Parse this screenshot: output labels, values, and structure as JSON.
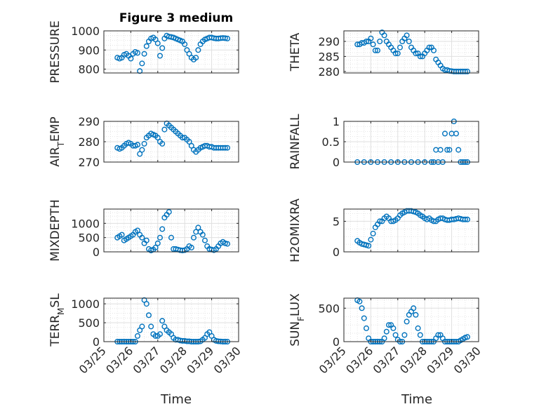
{
  "figure": {
    "title": "Figure 3 medium",
    "x_axis_label": "Time",
    "date_tick_labels": [
      "03/25",
      "03/26",
      "03/27",
      "03/28",
      "03/29",
      "03/30"
    ]
  },
  "colors": {
    "marker": "#0072BD",
    "axis": "#262626",
    "grid": "#DFDFDF"
  },
  "chart_data": [
    {
      "type": "scatter",
      "ylabel": "PRESSURE",
      "ylim": [
        780,
        1000
      ],
      "yticks": [
        800,
        900,
        1000
      ],
      "xlim": [
        "03/25",
        "03/30"
      ],
      "x": [
        "03/25 12:00",
        "03/25 14:00",
        "03/25 16:00",
        "03/25 18:00",
        "03/25 20:00",
        "03/25 22:00",
        "03/26 00:00",
        "03/26 02:00",
        "03/26 04:00",
        "03/26 06:00",
        "03/26 08:00",
        "03/26 10:00",
        "03/26 12:00",
        "03/26 14:00",
        "03/26 16:00",
        "03/26 18:00",
        "03/26 20:00",
        "03/26 22:00",
        "03/27 00:00",
        "03/27 02:00",
        "03/27 04:00",
        "03/27 06:00",
        "03/27 08:00",
        "03/27 10:00",
        "03/27 12:00",
        "03/27 14:00",
        "03/27 16:00",
        "03/27 18:00",
        "03/27 20:00",
        "03/27 22:00",
        "03/28 00:00",
        "03/28 02:00",
        "03/28 04:00",
        "03/28 06:00",
        "03/28 08:00",
        "03/28 10:00",
        "03/28 12:00",
        "03/28 14:00",
        "03/28 16:00",
        "03/28 18:00",
        "03/28 20:00",
        "03/28 22:00",
        "03/29 00:00",
        "03/29 02:00",
        "03/29 04:00",
        "03/29 06:00",
        "03/29 08:00",
        "03/29 10:00",
        "03/29 12:00",
        "03/29 14:00"
      ],
      "y": [
        860,
        855,
        860,
        875,
        880,
        870,
        855,
        880,
        890,
        885,
        790,
        830,
        880,
        920,
        945,
        960,
        965,
        955,
        935,
        870,
        910,
        960,
        975,
        970,
        968,
        965,
        960,
        955,
        950,
        945,
        930,
        900,
        880,
        860,
        850,
        860,
        900,
        930,
        945,
        955,
        960,
        965,
        965,
        962,
        960,
        960,
        962,
        963,
        962,
        960
      ]
    },
    {
      "type": "scatter",
      "ylabel": "THETA",
      "ylim": [
        279.5,
        293.5
      ],
      "yticks": [
        280,
        285,
        290
      ],
      "xlim": [
        "03/25",
        "03/30"
      ],
      "x": [
        "03/25 12:00",
        "03/25 14:00",
        "03/25 16:00",
        "03/25 18:00",
        "03/25 20:00",
        "03/25 22:00",
        "03/26 00:00",
        "03/26 02:00",
        "03/26 04:00",
        "03/26 06:00",
        "03/26 08:00",
        "03/26 10:00",
        "03/26 12:00",
        "03/26 14:00",
        "03/26 16:00",
        "03/26 18:00",
        "03/26 20:00",
        "03/26 22:00",
        "03/27 00:00",
        "03/27 02:00",
        "03/27 04:00",
        "03/27 06:00",
        "03/27 08:00",
        "03/27 10:00",
        "03/27 12:00",
        "03/27 14:00",
        "03/27 16:00",
        "03/27 18:00",
        "03/27 20:00",
        "03/27 22:00",
        "03/28 00:00",
        "03/28 02:00",
        "03/28 04:00",
        "03/28 06:00",
        "03/28 08:00",
        "03/28 10:00",
        "03/28 12:00",
        "03/28 14:00",
        "03/28 16:00",
        "03/28 18:00",
        "03/28 20:00",
        "03/28 22:00",
        "03/29 00:00",
        "03/29 02:00",
        "03/29 04:00",
        "03/29 06:00",
        "03/29 08:00",
        "03/29 10:00",
        "03/29 12:00",
        "03/29 14:00"
      ],
      "y": [
        289,
        289,
        289.5,
        289.5,
        290,
        290,
        291,
        289,
        287,
        287,
        290,
        293,
        292,
        290,
        289,
        288,
        287,
        286,
        286,
        288,
        290,
        291,
        292,
        290,
        288,
        287,
        286,
        286,
        285,
        285,
        286,
        287,
        288,
        288,
        287,
        284,
        283,
        282,
        281,
        280.5,
        280.5,
        280.2,
        280.1,
        280,
        280,
        280,
        280,
        280,
        280,
        280
      ]
    },
    {
      "type": "scatter",
      "ylabel": "AIR_TEMP",
      "ylim": [
        270,
        290
      ],
      "yticks": [
        270,
        280,
        290
      ],
      "xlim": [
        "03/25",
        "03/30"
      ],
      "x": [
        "03/25 12:00",
        "03/25 14:00",
        "03/25 16:00",
        "03/25 18:00",
        "03/25 20:00",
        "03/25 22:00",
        "03/26 00:00",
        "03/26 02:00",
        "03/26 04:00",
        "03/26 06:00",
        "03/26 08:00",
        "03/26 10:00",
        "03/26 12:00",
        "03/26 14:00",
        "03/26 16:00",
        "03/26 18:00",
        "03/26 20:00",
        "03/26 22:00",
        "03/27 00:00",
        "03/27 02:00",
        "03/27 04:00",
        "03/27 06:00",
        "03/27 08:00",
        "03/27 10:00",
        "03/27 12:00",
        "03/27 14:00",
        "03/27 16:00",
        "03/27 18:00",
        "03/27 20:00",
        "03/27 22:00",
        "03/28 00:00",
        "03/28 02:00",
        "03/28 04:00",
        "03/28 06:00",
        "03/28 08:00",
        "03/28 10:00",
        "03/28 12:00",
        "03/28 14:00",
        "03/28 16:00",
        "03/28 18:00",
        "03/28 20:00",
        "03/28 22:00",
        "03/29 00:00",
        "03/29 02:00",
        "03/29 04:00",
        "03/29 06:00",
        "03/29 08:00",
        "03/29 10:00",
        "03/29 12:00",
        "03/29 14:00"
      ],
      "y": [
        277,
        276.5,
        277,
        278,
        279,
        279.5,
        279,
        278,
        278,
        278.5,
        274,
        276,
        279,
        282,
        283,
        284,
        283.5,
        283,
        282,
        280,
        279,
        286,
        289,
        288,
        287,
        286,
        285,
        284,
        283,
        282,
        282,
        281,
        280,
        278,
        276,
        275,
        276,
        277,
        277.5,
        278,
        278,
        277.5,
        277.5,
        277,
        277,
        277,
        277,
        277,
        277,
        277
      ]
    },
    {
      "type": "scatter",
      "ylabel": "RAINFALL",
      "ylim": [
        0,
        1
      ],
      "yticks": [
        0,
        0.5,
        1
      ],
      "xlim": [
        "03/25",
        "03/30"
      ],
      "x": [
        "03/25 12:00",
        "03/25 18:00",
        "03/26 00:00",
        "03/26 06:00",
        "03/26 12:00",
        "03/26 18:00",
        "03/27 00:00",
        "03/27 06:00",
        "03/27 12:00",
        "03/27 18:00",
        "03/28 00:00",
        "03/28 06:00",
        "03/28 08:00",
        "03/28 10:00",
        "03/28 12:00",
        "03/28 14:00",
        "03/28 16:00",
        "03/28 18:00",
        "03/28 20:00",
        "03/28 22:00",
        "03/29 00:00",
        "03/29 02:00",
        "03/29 04:00",
        "03/29 06:00",
        "03/29 08:00",
        "03/29 10:00",
        "03/29 12:00",
        "03/29 14:00"
      ],
      "y": [
        0,
        0,
        0,
        0,
        0,
        0,
        0,
        0,
        0,
        0,
        0,
        0,
        0,
        0.3,
        0,
        0.3,
        0,
        0.7,
        0.3,
        0.3,
        0.7,
        1,
        0.7,
        0.3,
        0,
        0,
        0,
        0
      ]
    },
    {
      "type": "scatter",
      "ylabel": "MIXDEPTH",
      "ylim": [
        0,
        1500
      ],
      "yticks": [
        0,
        500,
        1000
      ],
      "xlim": [
        "03/25",
        "03/30"
      ],
      "x": [
        "03/25 12:00",
        "03/25 14:00",
        "03/25 16:00",
        "03/25 18:00",
        "03/25 20:00",
        "03/25 22:00",
        "03/26 00:00",
        "03/26 02:00",
        "03/26 04:00",
        "03/26 06:00",
        "03/26 08:00",
        "03/26 10:00",
        "03/26 12:00",
        "03/26 14:00",
        "03/26 16:00",
        "03/26 18:00",
        "03/26 20:00",
        "03/26 22:00",
        "03/27 00:00",
        "03/27 02:00",
        "03/27 04:00",
        "03/27 06:00",
        "03/27 08:00",
        "03/27 10:00",
        "03/27 12:00",
        "03/27 14:00",
        "03/27 16:00",
        "03/27 18:00",
        "03/27 20:00",
        "03/27 22:00",
        "03/28 00:00",
        "03/28 02:00",
        "03/28 04:00",
        "03/28 06:00",
        "03/28 08:00",
        "03/28 10:00",
        "03/28 12:00",
        "03/28 14:00",
        "03/28 16:00",
        "03/28 18:00",
        "03/28 20:00",
        "03/28 22:00",
        "03/29 00:00",
        "03/29 02:00",
        "03/29 04:00",
        "03/29 06:00",
        "03/29 08:00",
        "03/29 10:00",
        "03/29 12:00",
        "03/29 14:00"
      ],
      "y": [
        500,
        550,
        600,
        400,
        450,
        500,
        550,
        600,
        700,
        750,
        600,
        500,
        300,
        400,
        100,
        50,
        80,
        150,
        300,
        500,
        800,
        1200,
        1300,
        1400,
        500,
        100,
        100,
        80,
        60,
        50,
        60,
        100,
        200,
        150,
        500,
        700,
        850,
        700,
        600,
        400,
        200,
        100,
        80,
        60,
        100,
        200,
        300,
        350,
        300,
        280
      ]
    },
    {
      "type": "scatter",
      "ylabel": "H2OMIXRA",
      "ylim": [
        0,
        7
      ],
      "yticks": [
        0,
        5
      ],
      "xlim": [
        "03/25",
        "03/30"
      ],
      "x": [
        "03/25 12:00",
        "03/25 14:00",
        "03/25 16:00",
        "03/25 18:00",
        "03/25 20:00",
        "03/25 22:00",
        "03/26 00:00",
        "03/26 02:00",
        "03/26 04:00",
        "03/26 06:00",
        "03/26 08:00",
        "03/26 10:00",
        "03/26 12:00",
        "03/26 14:00",
        "03/26 16:00",
        "03/26 18:00",
        "03/26 20:00",
        "03/26 22:00",
        "03/27 00:00",
        "03/27 02:00",
        "03/27 04:00",
        "03/27 06:00",
        "03/27 08:00",
        "03/27 10:00",
        "03/27 12:00",
        "03/27 14:00",
        "03/27 16:00",
        "03/27 18:00",
        "03/27 20:00",
        "03/27 22:00",
        "03/28 00:00",
        "03/28 02:00",
        "03/28 04:00",
        "03/28 06:00",
        "03/28 08:00",
        "03/28 10:00",
        "03/28 12:00",
        "03/28 14:00",
        "03/28 16:00",
        "03/28 18:00",
        "03/28 20:00",
        "03/28 22:00",
        "03/29 00:00",
        "03/29 02:00",
        "03/29 04:00",
        "03/29 06:00",
        "03/29 08:00",
        "03/29 10:00",
        "03/29 12:00",
        "03/29 14:00"
      ],
      "y": [
        1.8,
        1.5,
        1.3,
        1.2,
        1.1,
        1.0,
        2.0,
        3.0,
        4.0,
        4.5,
        5.0,
        5.0,
        5.5,
        5.8,
        5.5,
        5.0,
        5.0,
        5.2,
        5.5,
        6.0,
        6.3,
        6.5,
        6.7,
        6.7,
        6.7,
        6.6,
        6.5,
        6.3,
        6.0,
        5.8,
        5.5,
        5.3,
        5.5,
        5.2,
        5.0,
        5.0,
        5.3,
        5.5,
        5.5,
        5.3,
        5.2,
        5.2,
        5.3,
        5.3,
        5.4,
        5.5,
        5.4,
        5.3,
        5.3,
        5.3
      ]
    },
    {
      "type": "scatter",
      "ylabel": "TERR_MSL",
      "ylim": [
        0,
        1150
      ],
      "yticks": [
        0,
        500,
        1000
      ],
      "xlim": [
        "03/25",
        "03/30"
      ],
      "x": [
        "03/25 12:00",
        "03/25 14:00",
        "03/25 16:00",
        "03/25 18:00",
        "03/25 20:00",
        "03/25 22:00",
        "03/26 00:00",
        "03/26 02:00",
        "03/26 04:00",
        "03/26 06:00",
        "03/26 08:00",
        "03/26 10:00",
        "03/26 12:00",
        "03/26 14:00",
        "03/26 16:00",
        "03/26 18:00",
        "03/26 20:00",
        "03/26 22:00",
        "03/27 00:00",
        "03/27 02:00",
        "03/27 04:00",
        "03/27 06:00",
        "03/27 08:00",
        "03/27 10:00",
        "03/27 12:00",
        "03/27 14:00",
        "03/27 16:00",
        "03/27 18:00",
        "03/27 20:00",
        "03/27 22:00",
        "03/28 00:00",
        "03/28 02:00",
        "03/28 04:00",
        "03/28 06:00",
        "03/28 08:00",
        "03/28 10:00",
        "03/28 12:00",
        "03/28 14:00",
        "03/28 16:00",
        "03/28 18:00",
        "03/28 20:00",
        "03/28 22:00",
        "03/29 00:00",
        "03/29 02:00",
        "03/29 04:00",
        "03/29 06:00",
        "03/29 08:00",
        "03/29 10:00",
        "03/29 12:00",
        "03/29 14:00"
      ],
      "y": [
        0,
        0,
        0,
        0,
        0,
        0,
        0,
        0,
        0,
        150,
        300,
        400,
        1100,
        1000,
        700,
        400,
        200,
        150,
        150,
        200,
        550,
        400,
        300,
        250,
        200,
        100,
        50,
        50,
        30,
        20,
        20,
        10,
        10,
        0,
        0,
        0,
        0,
        10,
        50,
        100,
        200,
        250,
        150,
        50,
        20,
        10,
        5,
        0,
        0,
        0
      ]
    },
    {
      "type": "scatter",
      "ylabel": "SUN_FLUX",
      "ylim": [
        0,
        650
      ],
      "yticks": [
        0,
        500
      ],
      "xlim": [
        "03/25",
        "03/30"
      ],
      "x": [
        "03/25 12:00",
        "03/25 14:00",
        "03/25 16:00",
        "03/25 18:00",
        "03/25 20:00",
        "03/25 22:00",
        "03/26 00:00",
        "03/26 02:00",
        "03/26 04:00",
        "03/26 06:00",
        "03/26 08:00",
        "03/26 10:00",
        "03/26 12:00",
        "03/26 14:00",
        "03/26 16:00",
        "03/26 18:00",
        "03/26 20:00",
        "03/26 22:00",
        "03/27 00:00",
        "03/27 02:00",
        "03/27 04:00",
        "03/27 06:00",
        "03/27 08:00",
        "03/27 10:00",
        "03/27 12:00",
        "03/27 14:00",
        "03/27 16:00",
        "03/27 18:00",
        "03/27 20:00",
        "03/27 22:00",
        "03/28 00:00",
        "03/28 02:00",
        "03/28 04:00",
        "03/28 06:00",
        "03/28 08:00",
        "03/28 10:00",
        "03/28 12:00",
        "03/28 14:00",
        "03/28 16:00",
        "03/28 18:00",
        "03/28 20:00",
        "03/28 22:00",
        "03/29 00:00",
        "03/29 02:00",
        "03/29 04:00",
        "03/29 06:00",
        "03/29 08:00",
        "03/29 10:00",
        "03/29 12:00",
        "03/29 14:00"
      ],
      "y": [
        620,
        600,
        500,
        350,
        200,
        50,
        0,
        0,
        0,
        0,
        0,
        0,
        50,
        150,
        250,
        250,
        200,
        100,
        30,
        0,
        0,
        100,
        300,
        400,
        450,
        500,
        400,
        200,
        100,
        0,
        0,
        0,
        0,
        0,
        0,
        50,
        100,
        100,
        50,
        0,
        0,
        0,
        0,
        0,
        0,
        0,
        20,
        40,
        60,
        70
      ]
    }
  ]
}
